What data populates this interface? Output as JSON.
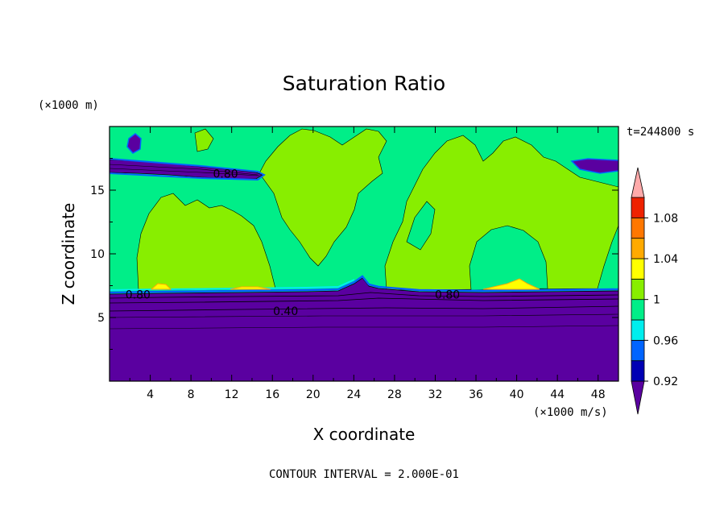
{
  "chart_data": {
    "type": "contour",
    "title": "Saturation Ratio",
    "xlabel": "X coordinate",
    "ylabel": "Z coordinate",
    "x_unit": "(×1000 m/s)",
    "y_unit": "(×1000 m)",
    "time_label": "t=244800 s",
    "contour_interval_label": "CONTOUR INTERVAL = 2.000E-01",
    "xlim": [
      0,
      50
    ],
    "ylim": [
      0,
      20
    ],
    "x_ticks": [
      4,
      8,
      12,
      16,
      20,
      24,
      28,
      32,
      36,
      40,
      44,
      48
    ],
    "y_ticks": [
      5,
      10,
      15
    ],
    "contour_labels": [
      {
        "text": "0.80",
        "x": 11.4,
        "y": 16.3
      },
      {
        "text": "0.80",
        "x": 2.8,
        "y": 6.8
      },
      {
        "text": "0.40",
        "x": 17.3,
        "y": 5.5
      },
      {
        "text": "0.80",
        "x": 33.2,
        "y": 6.8
      }
    ],
    "colorbar": {
      "levels": [
        0.92,
        0.94,
        0.96,
        0.98,
        1.0,
        1.02,
        1.04,
        1.06,
        1.08,
        1.1
      ],
      "tick_labels": [
        "0.92",
        "0.96",
        "1",
        "1.04",
        "1.08"
      ],
      "colors": [
        "#5a00a0",
        "#0000b4",
        "#0064ff",
        "#00eeee",
        "#00ee88",
        "#88ee00",
        "#ffff00",
        "#ffaa00",
        "#ff7700",
        "#ee2200",
        "#ffaaaa"
      ]
    }
  }
}
